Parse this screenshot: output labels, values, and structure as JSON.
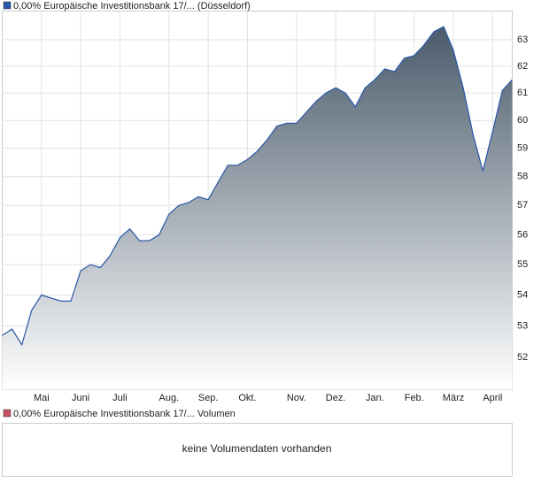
{
  "chart_data": {
    "type": "area",
    "series": [
      {
        "name": "0,00% Europäische Investitionsbank 17/... (Düsseldorf)",
        "color": "#2a58a8",
        "values": [
          52.7,
          52.9,
          52.4,
          53.5,
          54.0,
          53.9,
          53.8,
          53.8,
          54.8,
          55.0,
          54.9,
          55.3,
          55.9,
          56.2,
          55.8,
          55.8,
          56.0,
          56.7,
          57.0,
          57.1,
          57.3,
          57.2,
          57.8,
          58.4,
          58.4,
          58.6,
          58.9,
          59.3,
          59.8,
          59.9,
          59.9,
          60.3,
          60.7,
          61.0,
          61.2,
          61.0,
          60.5,
          61.2,
          61.5,
          61.9,
          61.8,
          62.3,
          62.4,
          62.8,
          63.3,
          63.5,
          62.6,
          61.2,
          59.5,
          58.2,
          59.6,
          61.1,
          61.5
        ]
      }
    ],
    "categories": [
      null,
      null,
      null,
      null,
      "Mai",
      null,
      null,
      null,
      "Juni",
      null,
      null,
      null,
      "Juli",
      null,
      null,
      null,
      null,
      "Aug.",
      null,
      null,
      null,
      "Sep.",
      null,
      null,
      null,
      "Okt.",
      null,
      null,
      null,
      null,
      "Nov.",
      null,
      null,
      null,
      "Dez.",
      null,
      null,
      null,
      "Jan.",
      null,
      null,
      null,
      "Feb.",
      null,
      null,
      null,
      "März",
      null,
      null,
      null,
      "April",
      null,
      null
    ],
    "ylim": [
      51.0,
      64.1
    ],
    "yticks": [
      52,
      53,
      54,
      55,
      56,
      57,
      58,
      59,
      60,
      61,
      62,
      63
    ],
    "log": true,
    "grid": true,
    "fill_top": "#4a5b6b"
  },
  "volume_panel": {
    "legend": "0,00% Europäische Investitionsbank 17/... Volumen",
    "color": "#c85060",
    "message": "keine Volumendaten vorhanden"
  }
}
